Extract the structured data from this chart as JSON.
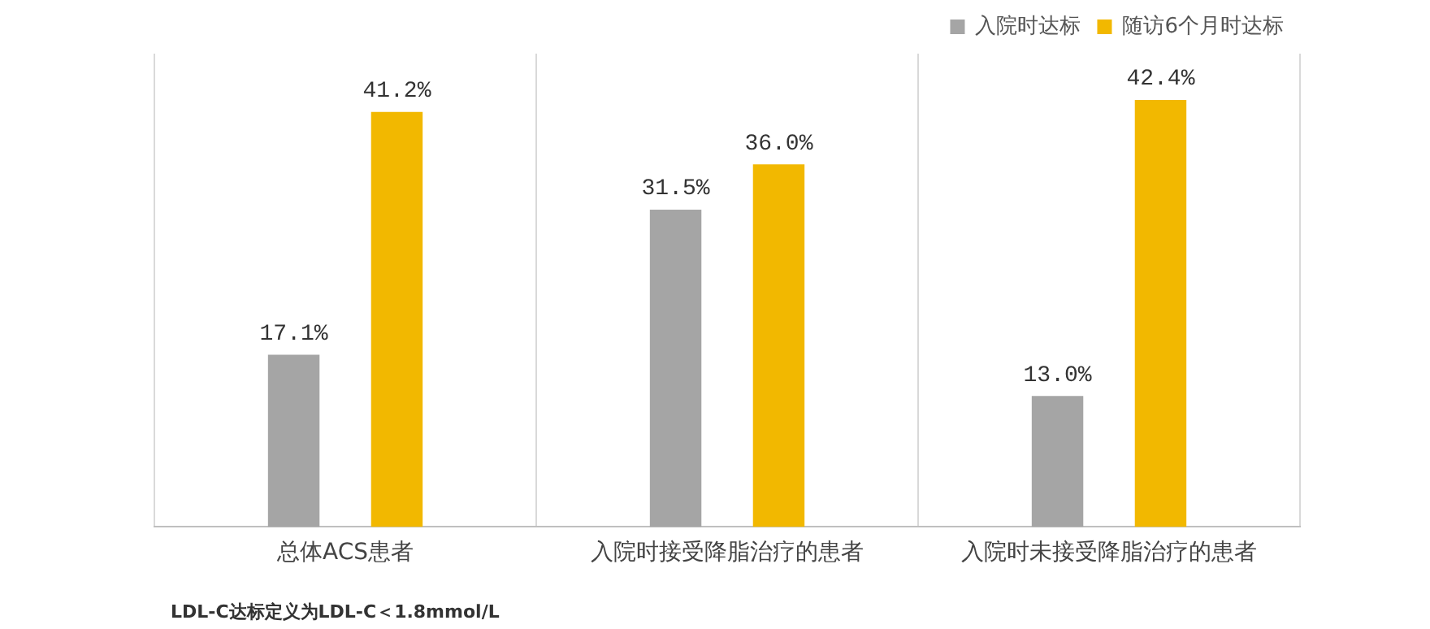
{
  "chart_data": {
    "type": "bar",
    "categories": [
      "总体ACS患者",
      "入院时接受降脂治疗的患者",
      "入院时未接受降脂治疗的患者"
    ],
    "series": [
      {
        "name": "入院时达标",
        "color": "#a5a5a5",
        "values": [
          17.1,
          31.5,
          13.0
        ],
        "value_labels": [
          "17.1%",
          "31.5%",
          "13.0%"
        ]
      },
      {
        "name": "随访6个月时达标",
        "color": "#f2b800",
        "values": [
          41.2,
          36.0,
          42.4
        ],
        "value_labels": [
          "41.2%",
          "36.0%",
          "42.4%"
        ]
      }
    ],
    "ylim": [
      0,
      47
    ],
    "tick_labels": "x",
    "grid": "x",
    "legend": "top right",
    "annotations": [
      "LDL-C达标定义为LDL-C＜1.8mmol/L"
    ]
  }
}
